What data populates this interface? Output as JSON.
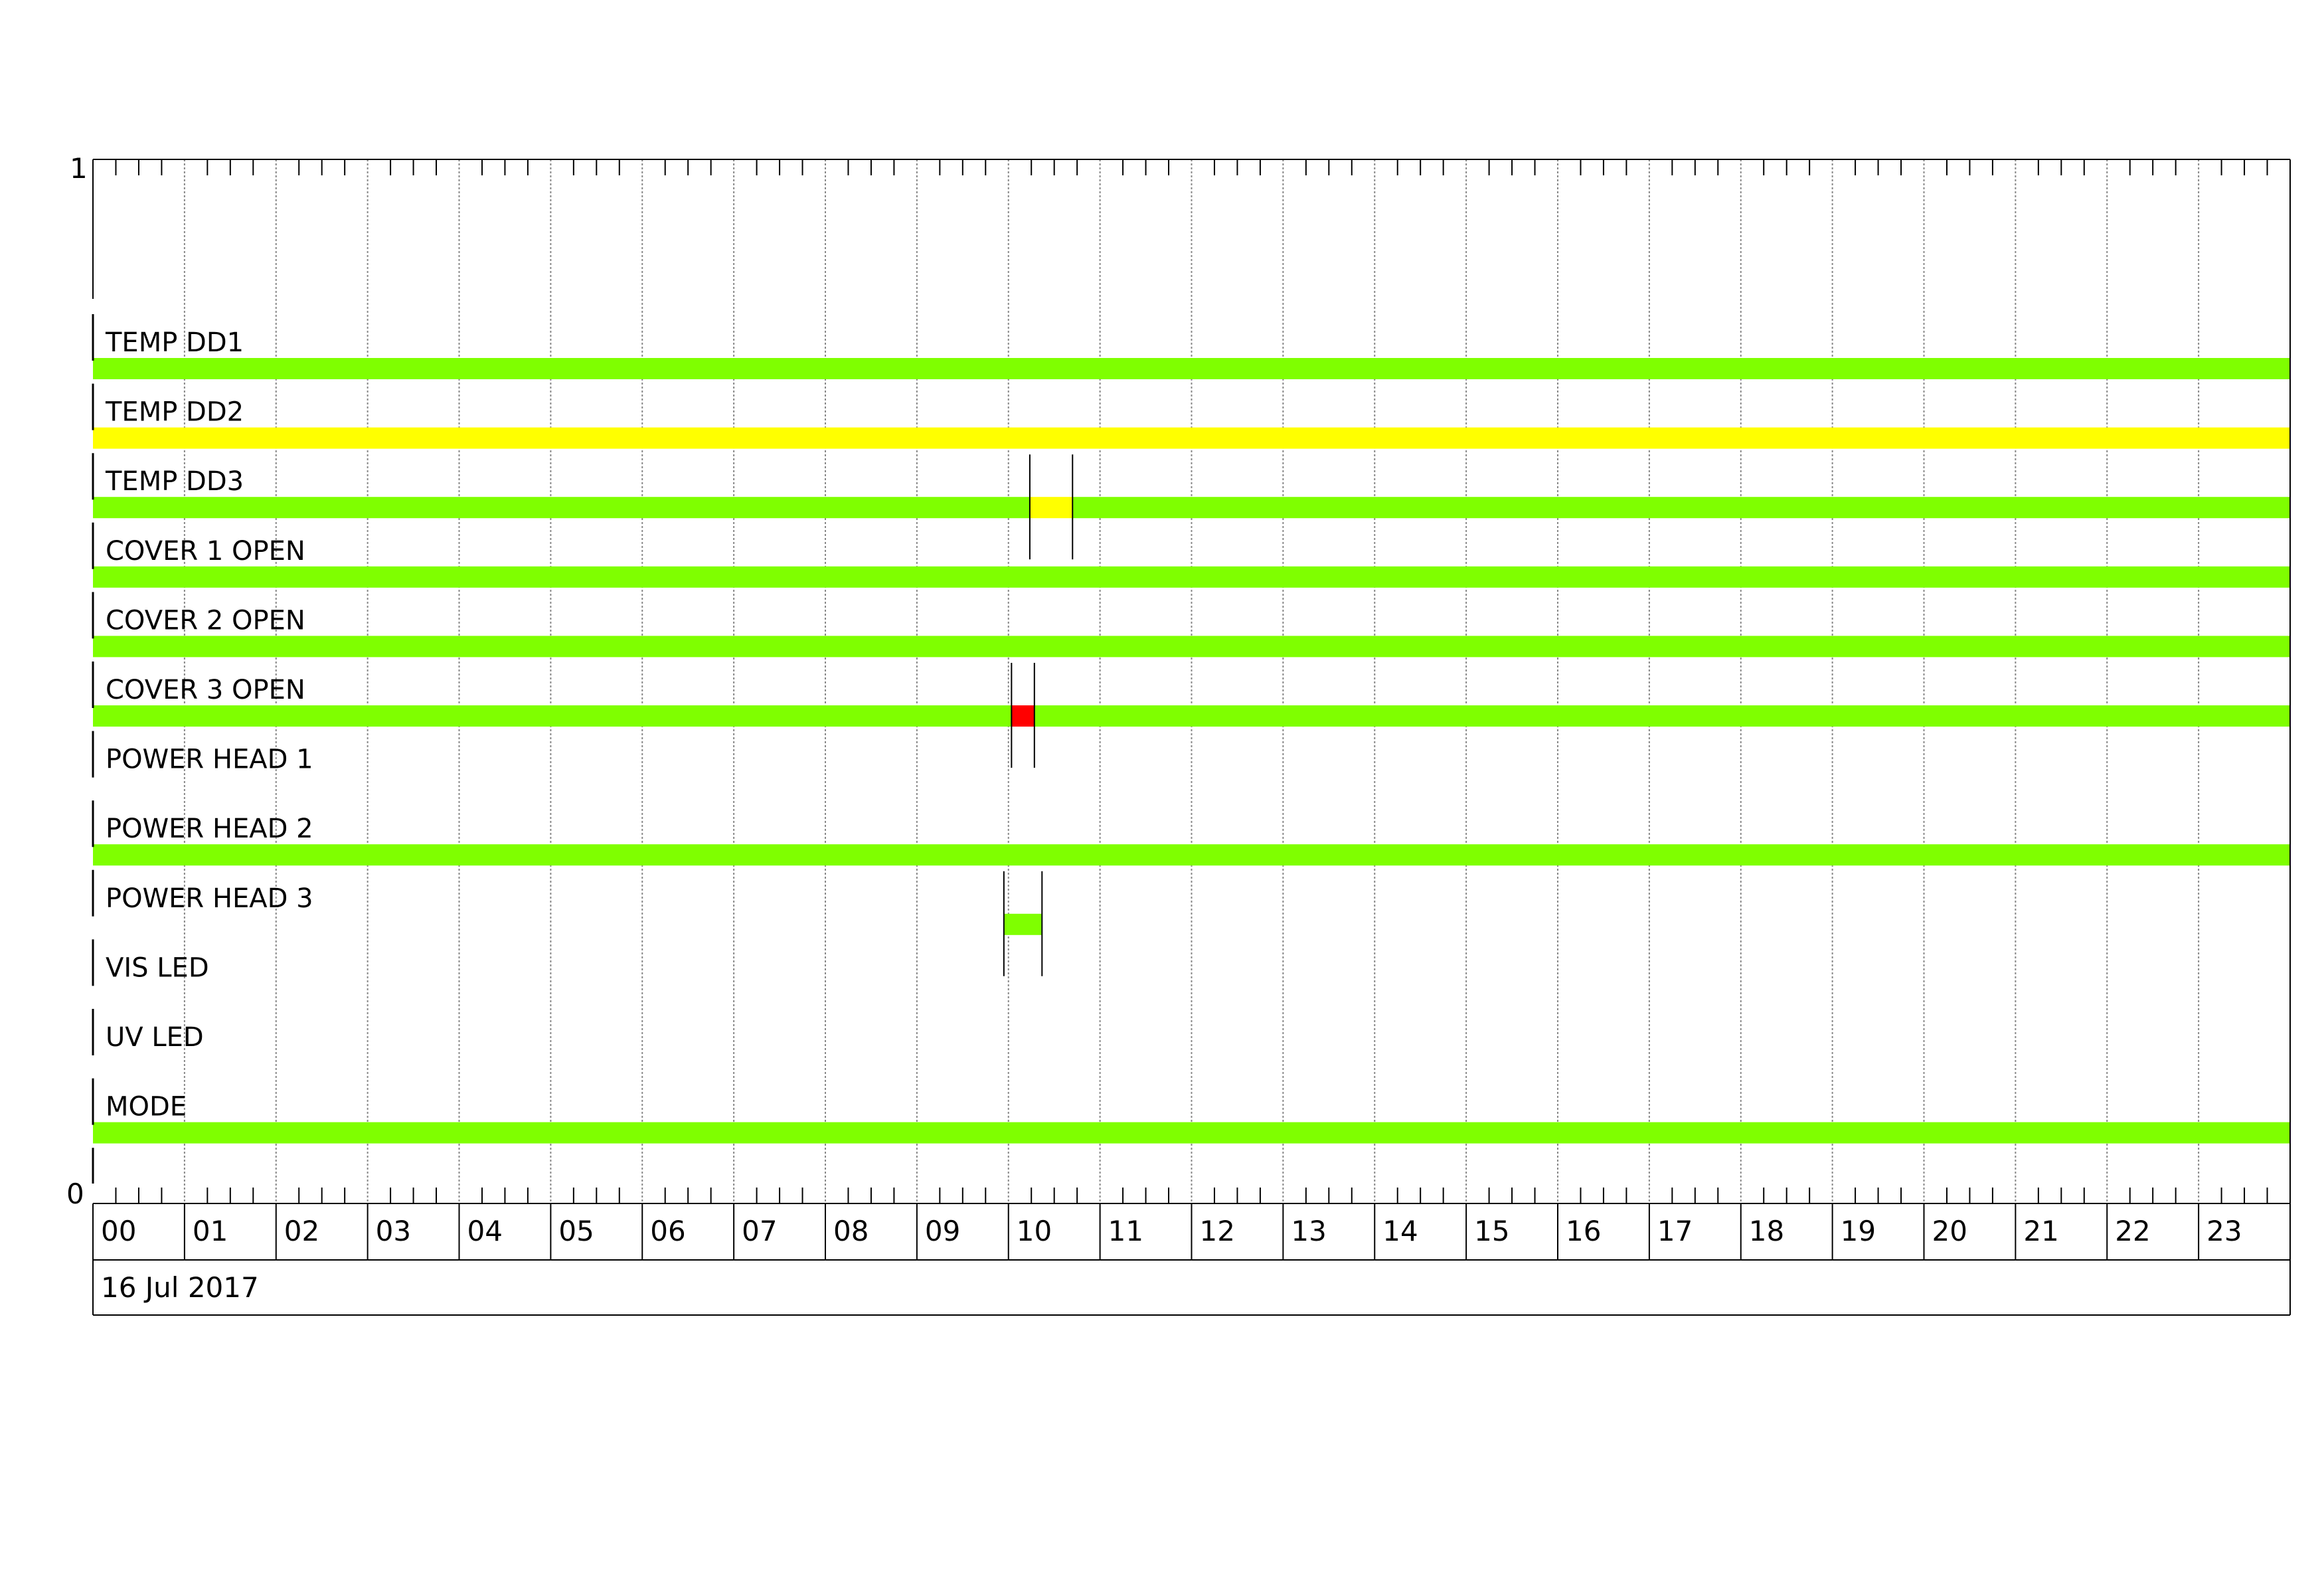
{
  "chart_data": {
    "type": "timeline",
    "date_label": "16 Jul 2017",
    "y_ticks": [
      "1",
      "0"
    ],
    "x_tick_labels": [
      "00",
      "01",
      "02",
      "03",
      "04",
      "05",
      "06",
      "07",
      "08",
      "09",
      "10",
      "11",
      "12",
      "13",
      "14",
      "15",
      "16",
      "17",
      "18",
      "19",
      "20",
      "21",
      "22",
      "23"
    ],
    "x_range_hours": [
      0,
      24
    ],
    "minor_tick_minutes": 15,
    "grid": true,
    "colors": {
      "ok": "#7FFF00",
      "warning": "#FFFF00",
      "alarm": "#FF0000"
    },
    "rows": [
      {
        "label": "TEMP DD1",
        "segments": [
          {
            "start": "00:00",
            "end": "24:00",
            "status": "ok"
          }
        ]
      },
      {
        "label": "TEMP DD2",
        "segments": [
          {
            "start": "00:00",
            "end": "24:00",
            "status": "warning"
          }
        ]
      },
      {
        "label": "TEMP DD3",
        "segments": [
          {
            "start": "00:00",
            "end": "10:14",
            "status": "ok"
          },
          {
            "start": "10:14",
            "end": "10:42",
            "status": "warning"
          },
          {
            "start": "10:42",
            "end": "24:00",
            "status": "ok"
          }
        ],
        "markers": [
          "10:14",
          "10:42"
        ]
      },
      {
        "label": "COVER 1 OPEN",
        "segments": [
          {
            "start": "00:00",
            "end": "24:00",
            "status": "ok"
          }
        ]
      },
      {
        "label": "COVER 2 OPEN",
        "segments": [
          {
            "start": "00:00",
            "end": "24:00",
            "status": "ok"
          }
        ]
      },
      {
        "label": "COVER 3 OPEN",
        "segments": [
          {
            "start": "00:00",
            "end": "10:02",
            "status": "ok"
          },
          {
            "start": "10:02",
            "end": "10:17",
            "status": "alarm"
          },
          {
            "start": "10:17",
            "end": "24:00",
            "status": "ok"
          }
        ],
        "markers": [
          "10:02",
          "10:17"
        ]
      },
      {
        "label": "POWER HEAD 1",
        "segments": []
      },
      {
        "label": "POWER HEAD 2",
        "segments": [
          {
            "start": "00:00",
            "end": "24:00",
            "status": "ok"
          }
        ]
      },
      {
        "label": "POWER HEAD 3",
        "segments": [
          {
            "start": "09:57",
            "end": "10:22",
            "status": "ok"
          }
        ],
        "markers": [
          "09:57",
          "10:22"
        ]
      },
      {
        "label": "VIS LED",
        "segments": []
      },
      {
        "label": "UV LED",
        "segments": []
      },
      {
        "label": "MODE",
        "segments": [
          {
            "start": "00:00",
            "end": "24:00",
            "status": "ok"
          }
        ]
      }
    ]
  }
}
